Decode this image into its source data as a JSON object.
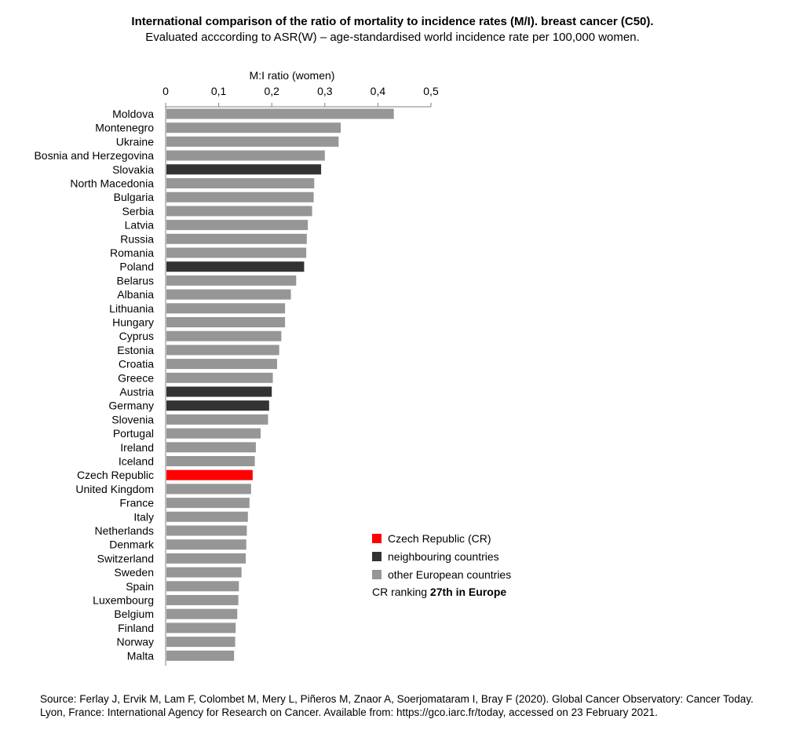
{
  "colors": {
    "cr": "#ff0000",
    "neighbouring": "#333333",
    "other": "#969696",
    "axis": "#7f7f7f"
  },
  "chart_data": {
    "type": "bar",
    "orientation": "horizontal",
    "title": "International comparison of the ratio of mortality to incidence rates (M/I). breast cancer (C50).",
    "subtitle": "Evaluated acccording to ASR(W) – age-standardised world incidence rate per 100,000 women.",
    "xlabel": "M:I ratio (women)",
    "xlim": [
      0,
      0.5
    ],
    "xticks": [
      0,
      0.1,
      0.2,
      0.3,
      0.4,
      0.5
    ],
    "xtick_labels": [
      "0",
      "0,1",
      "0,2",
      "0,3",
      "0,4",
      "0,5"
    ],
    "axis_position": "top",
    "grid": false,
    "legend_position": "bottom-right",
    "categories": [
      "Moldova",
      "Montenegro",
      "Ukraine",
      "Bosnia and Herzegovina",
      "Slovakia",
      "North Macedonia",
      "Bulgaria",
      "Serbia",
      "Latvia",
      "Russia",
      "Romania",
      "Poland",
      "Belarus",
      "Albania",
      "Lithuania",
      "Hungary",
      "Cyprus",
      "Estonia",
      "Croatia",
      "Greece",
      "Austria",
      "Germany",
      "Slovenia",
      "Portugal",
      "Ireland",
      "Iceland",
      "Czech Republic",
      "United Kingdom",
      "France",
      "Italy",
      "Netherlands",
      "Denmark",
      "Switzerland",
      "Sweden",
      "Spain",
      "Luxembourg",
      "Belgium",
      "Finland",
      "Norway",
      "Malta"
    ],
    "values": [
      0.43,
      0.33,
      0.326,
      0.3,
      0.293,
      0.28,
      0.279,
      0.276,
      0.268,
      0.266,
      0.265,
      0.261,
      0.246,
      0.236,
      0.225,
      0.225,
      0.218,
      0.214,
      0.21,
      0.202,
      0.2,
      0.195,
      0.193,
      0.179,
      0.17,
      0.168,
      0.164,
      0.161,
      0.158,
      0.155,
      0.153,
      0.152,
      0.151,
      0.143,
      0.138,
      0.137,
      0.135,
      0.132,
      0.131,
      0.129
    ],
    "groups": [
      "other",
      "other",
      "other",
      "other",
      "neighbouring",
      "other",
      "other",
      "other",
      "other",
      "other",
      "other",
      "neighbouring",
      "other",
      "other",
      "other",
      "other",
      "other",
      "other",
      "other",
      "other",
      "neighbouring",
      "neighbouring",
      "other",
      "other",
      "other",
      "other",
      "cr",
      "other",
      "other",
      "other",
      "other",
      "other",
      "other",
      "other",
      "other",
      "other",
      "other",
      "other",
      "other",
      "other"
    ],
    "legend": [
      {
        "key": "cr",
        "label": "Czech Republic (CR)"
      },
      {
        "key": "neighbouring",
        "label": "neighbouring countries"
      },
      {
        "key": "other",
        "label": "other European countries"
      }
    ],
    "ranking_prefix": "CR ranking ",
    "ranking_value": "27th in Europe"
  },
  "source": "Source: Ferlay J, Ervik M, Lam F, Colombet M, Mery L, Piñeros M, Znaor A, Soerjomataram I, Bray F (2020). Global Cancer Observatory: Cancer Today. Lyon, France: International Agency for Research on Cancer. Available from: https://gco.iarc.fr/today, accessed on 23 February 2021."
}
